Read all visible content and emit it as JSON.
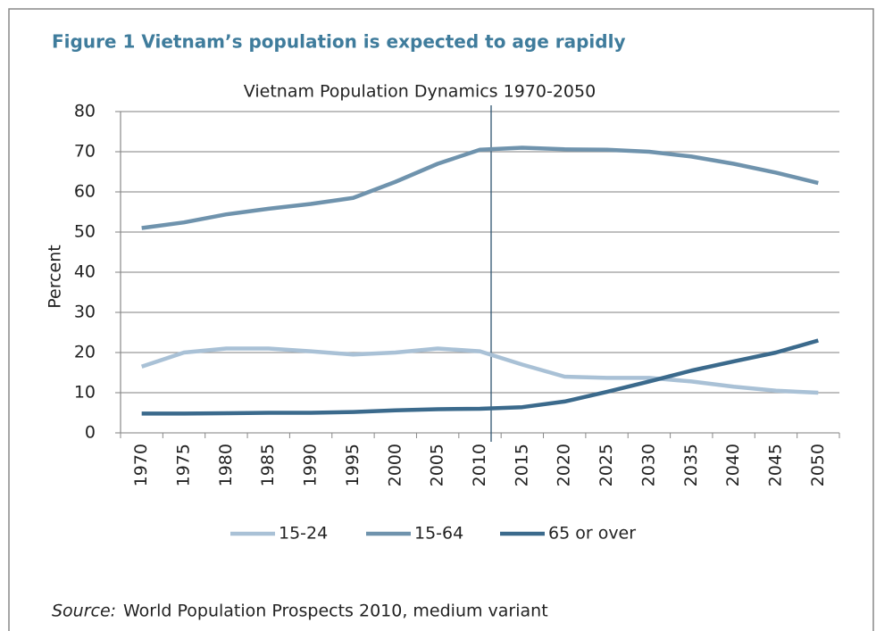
{
  "figure_title": "Figure 1  Vietnam’s population is expected to age rapidly",
  "source_label": "Source:",
  "source": "World Population Prospects 2010, medium variant",
  "chart_data": {
    "type": "line",
    "title": "Vietnam Population Dynamics 1970-2050",
    "ylabel": "Percent",
    "categories": [
      "1970",
      "1975",
      "1980",
      "1985",
      "1990",
      "1995",
      "2000",
      "2005",
      "2010",
      "2015",
      "2020",
      "2025",
      "2030",
      "2035",
      "2040",
      "2045",
      "2050"
    ],
    "series": [
      {
        "name": "15-24",
        "color": "#a9c1d6",
        "values": [
          16.5,
          20,
          21,
          21,
          20.3,
          19.5,
          20,
          21,
          20.3,
          17,
          14,
          13.7,
          13.7,
          12.8,
          11.5,
          10.5,
          10
        ]
      },
      {
        "name": "15-64",
        "color": "#6f93ad",
        "values": [
          51,
          52.4,
          54.4,
          55.8,
          57,
          58.5,
          62.5,
          67,
          70.5,
          71,
          70.6,
          70.5,
          70,
          68.8,
          67,
          64.8,
          62.2
        ]
      },
      {
        "name": "65 or over",
        "color": "#3b6a8c",
        "values": [
          4.8,
          4.8,
          4.9,
          5,
          5,
          5.2,
          5.6,
          5.9,
          6,
          6.4,
          7.8,
          10.2,
          12.8,
          15.5,
          17.8,
          20,
          23
        ]
      }
    ],
    "ylim": [
      0,
      80
    ],
    "yticks": [
      0,
      10,
      20,
      30,
      40,
      50,
      60,
      70,
      80
    ],
    "grid": true,
    "legend": "bottom"
  }
}
